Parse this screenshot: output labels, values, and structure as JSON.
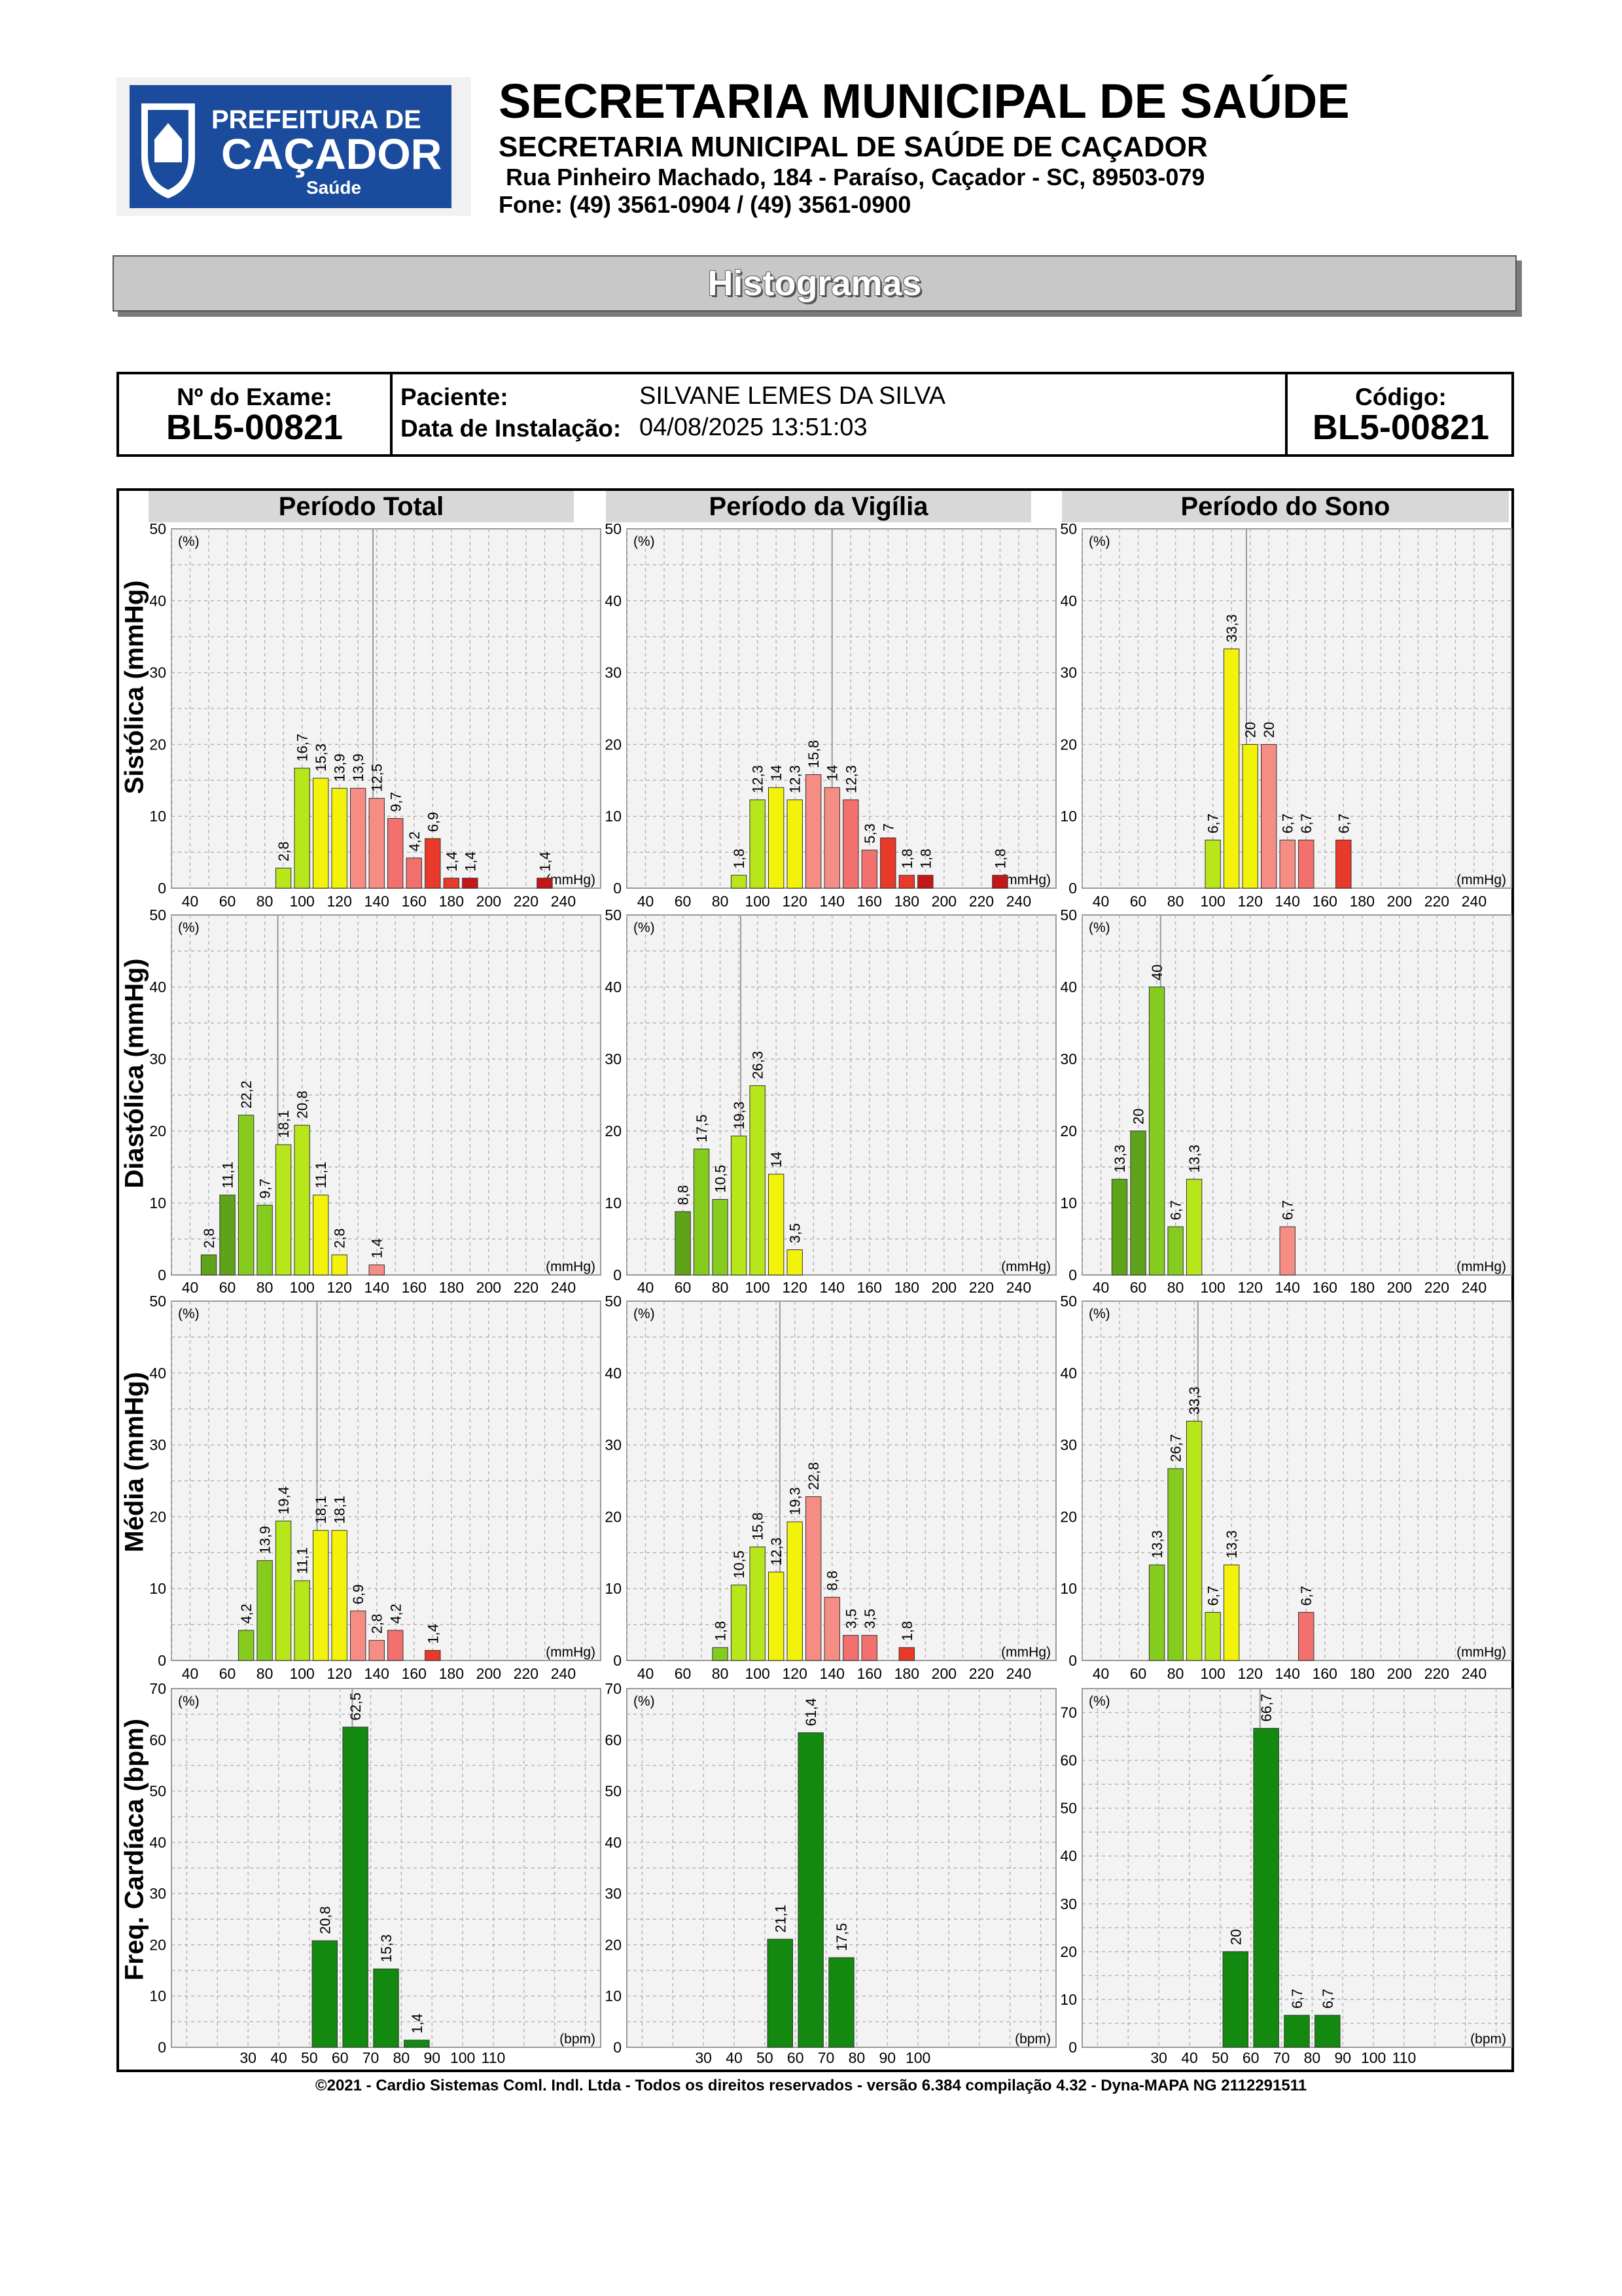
{
  "header": {
    "logo_text_line1": "PREFEITURA DE",
    "logo_text_line2": "CAÇADOR",
    "logo_text_line3": "Saúde",
    "title": "SECRETARIA MUNICIPAL DE SAÚDE",
    "subtitle": "SECRETARIA MUNICIPAL DE SAÚDE DE CAÇADOR",
    "address": "Rua Pinheiro Machado, 184 - Paraíso, Caçador - SC, 89503-079",
    "phone": "Fone: (49) 3561-0904  / (49) 3561-0900"
  },
  "banner": "Histogramas",
  "info": {
    "exam_label": "Nº do Exame:",
    "exam_value": "BL5-00821",
    "patient_label": "Paciente:",
    "patient_value": "SILVANE LEMES DA SILVA",
    "install_label": "Data de Instalação:",
    "install_value": "04/08/2025 13:51:03",
    "code_label": "Código:",
    "code_value": "BL5-00821"
  },
  "columns": [
    "Período Total",
    "Período da Vigília",
    "Período do Sono"
  ],
  "rows": [
    "Sistólica (mmHg)",
    "Diastólica (mmHg)",
    "Média (mmHg)",
    "Freq. Cardíaca (bpm)"
  ],
  "colors": {
    "bp_palette": [
      "#5fa31a",
      "#86cc1f",
      "#b7e61b",
      "#f2f20a",
      "#f58d85",
      "#f2706e",
      "#e8392b",
      "#c41818"
    ],
    "hr_bar": "#138a0f",
    "grid_bg": "#f3f3f3"
  },
  "chart_data": [
    {
      "id": "sys-total",
      "type": "bar",
      "unit": "(mmHg)",
      "ylabel": "(%)",
      "ylim": [
        0,
        50
      ],
      "yticks": [
        0,
        10,
        20,
        30,
        40,
        50
      ],
      "xticks": [
        40,
        60,
        80,
        100,
        120,
        140,
        160,
        180,
        200,
        220,
        240
      ],
      "marker": 138,
      "bars": [
        {
          "x": 90,
          "v": 2.8,
          "label": "2,8"
        },
        {
          "x": 100,
          "v": 16.7,
          "label": "16,7"
        },
        {
          "x": 110,
          "v": 15.3,
          "label": "15,3"
        },
        {
          "x": 120,
          "v": 13.9,
          "label": "13,9"
        },
        {
          "x": 130,
          "v": 13.9,
          "label": "13,9"
        },
        {
          "x": 140,
          "v": 12.5,
          "label": "12,5"
        },
        {
          "x": 150,
          "v": 9.7,
          "label": "9,7"
        },
        {
          "x": 160,
          "v": 4.2,
          "label": "4,2"
        },
        {
          "x": 170,
          "v": 6.9,
          "label": "6,9"
        },
        {
          "x": 180,
          "v": 1.4,
          "label": "1,4"
        },
        {
          "x": 190,
          "v": 1.4,
          "label": "1,4"
        },
        {
          "x": 230,
          "v": 1.4,
          "label": "1,4"
        }
      ]
    },
    {
      "id": "sys-vigilia",
      "type": "bar",
      "unit": "(mmHg)",
      "ylabel": "(%)",
      "ylim": [
        0,
        50
      ],
      "yticks": [
        0,
        10,
        20,
        30,
        40,
        50
      ],
      "xticks": [
        40,
        60,
        80,
        100,
        120,
        140,
        160,
        180,
        200,
        220,
        240
      ],
      "marker": 140,
      "bars": [
        {
          "x": 90,
          "v": 1.8,
          "label": "1,8"
        },
        {
          "x": 100,
          "v": 12.3,
          "label": "12,3"
        },
        {
          "x": 110,
          "v": 14,
          "label": "14"
        },
        {
          "x": 120,
          "v": 12.3,
          "label": "12,3"
        },
        {
          "x": 130,
          "v": 15.8,
          "label": "15,8"
        },
        {
          "x": 140,
          "v": 14,
          "label": "14"
        },
        {
          "x": 150,
          "v": 12.3,
          "label": "12,3"
        },
        {
          "x": 160,
          "v": 5.3,
          "label": "5,3"
        },
        {
          "x": 170,
          "v": 7,
          "label": "7"
        },
        {
          "x": 180,
          "v": 1.8,
          "label": "1,8"
        },
        {
          "x": 190,
          "v": 1.8,
          "label": "1,8"
        },
        {
          "x": 230,
          "v": 1.8,
          "label": "1,8"
        }
      ]
    },
    {
      "id": "sys-sono",
      "type": "bar",
      "unit": "(mmHg)",
      "ylabel": "(%)",
      "ylim": [
        0,
        50
      ],
      "yticks": [
        0,
        10,
        20,
        30,
        40,
        50
      ],
      "xticks": [
        40,
        60,
        80,
        100,
        120,
        140,
        160,
        180,
        200,
        220,
        240
      ],
      "marker": 118,
      "bars": [
        {
          "x": 100,
          "v": 6.7,
          "label": "6,7"
        },
        {
          "x": 110,
          "v": 33.3,
          "label": "33,3"
        },
        {
          "x": 120,
          "v": 20,
          "label": "20"
        },
        {
          "x": 130,
          "v": 20,
          "label": "20"
        },
        {
          "x": 140,
          "v": 6.7,
          "label": "6,7"
        },
        {
          "x": 150,
          "v": 6.7,
          "label": "6,7"
        },
        {
          "x": 170,
          "v": 6.7,
          "label": "6,7"
        }
      ]
    },
    {
      "id": "dia-total",
      "type": "bar",
      "unit": "(mmHg)",
      "ylabel": "(%)",
      "ylim": [
        0,
        50
      ],
      "yticks": [
        0,
        10,
        20,
        30,
        40,
        50
      ],
      "xticks": [
        40,
        60,
        80,
        100,
        120,
        140,
        160,
        180,
        200,
        220,
        240
      ],
      "marker": 87,
      "bars": [
        {
          "x": 50,
          "v": 2.8,
          "label": "2,8"
        },
        {
          "x": 60,
          "v": 11.1,
          "label": "11,1"
        },
        {
          "x": 70,
          "v": 22.2,
          "label": "22,2"
        },
        {
          "x": 80,
          "v": 9.7,
          "label": "9,7"
        },
        {
          "x": 90,
          "v": 18.1,
          "label": "18,1"
        },
        {
          "x": 100,
          "v": 20.8,
          "label": "20,8"
        },
        {
          "x": 110,
          "v": 11.1,
          "label": "11,1"
        },
        {
          "x": 120,
          "v": 2.8,
          "label": "2,8"
        },
        {
          "x": 140,
          "v": 1.4,
          "label": "1,4"
        }
      ]
    },
    {
      "id": "dia-vigilia",
      "type": "bar",
      "unit": "(mmHg)",
      "ylabel": "(%)",
      "ylim": [
        0,
        50
      ],
      "yticks": [
        0,
        10,
        20,
        30,
        40,
        50
      ],
      "xticks": [
        40,
        60,
        80,
        100,
        120,
        140,
        160,
        180,
        200,
        220,
        240
      ],
      "marker": 91,
      "bars": [
        {
          "x": 60,
          "v": 8.8,
          "label": "8,8"
        },
        {
          "x": 70,
          "v": 17.5,
          "label": "17,5"
        },
        {
          "x": 80,
          "v": 10.5,
          "label": "10,5"
        },
        {
          "x": 90,
          "v": 19.3,
          "label": "19,3"
        },
        {
          "x": 100,
          "v": 26.3,
          "label": "26,3"
        },
        {
          "x": 110,
          "v": 14,
          "label": "14"
        },
        {
          "x": 120,
          "v": 3.5,
          "label": "3,5"
        }
      ]
    },
    {
      "id": "dia-sono",
      "type": "bar",
      "unit": "(mmHg)",
      "ylabel": "(%)",
      "ylim": [
        0,
        50
      ],
      "yticks": [
        0,
        10,
        20,
        30,
        40,
        50
      ],
      "xticks": [
        40,
        60,
        80,
        100,
        120,
        140,
        160,
        180,
        200,
        220,
        240
      ],
      "marker": 72,
      "bars": [
        {
          "x": 50,
          "v": 13.3,
          "label": "13,3"
        },
        {
          "x": 60,
          "v": 20,
          "label": "20"
        },
        {
          "x": 70,
          "v": 40,
          "label": "40"
        },
        {
          "x": 80,
          "v": 6.7,
          "label": "6,7"
        },
        {
          "x": 90,
          "v": 13.3,
          "label": "13,3"
        },
        {
          "x": 140,
          "v": 6.7,
          "label": "6,7"
        }
      ]
    },
    {
      "id": "med-total",
      "type": "bar",
      "unit": "(mmHg)",
      "ylabel": "(%)",
      "ylim": [
        0,
        50
      ],
      "yticks": [
        0,
        10,
        20,
        30,
        40,
        50
      ],
      "xticks": [
        40,
        60,
        80,
        100,
        120,
        140,
        160,
        180,
        200,
        220,
        240
      ],
      "marker": 108,
      "bars": [
        {
          "x": 70,
          "v": 4.2,
          "label": "4,2"
        },
        {
          "x": 80,
          "v": 13.9,
          "label": "13,9"
        },
        {
          "x": 90,
          "v": 19.4,
          "label": "19,4"
        },
        {
          "x": 100,
          "v": 11.1,
          "label": "11,1"
        },
        {
          "x": 110,
          "v": 18.1,
          "label": "18,1"
        },
        {
          "x": 120,
          "v": 18.1,
          "label": "18,1"
        },
        {
          "x": 130,
          "v": 6.9,
          "label": "6,9"
        },
        {
          "x": 140,
          "v": 2.8,
          "label": "2,8"
        },
        {
          "x": 150,
          "v": 4.2,
          "label": "4,2"
        },
        {
          "x": 170,
          "v": 1.4,
          "label": "1,4"
        }
      ]
    },
    {
      "id": "med-vigilia",
      "type": "bar",
      "unit": "(mmHg)",
      "ylabel": "(%)",
      "ylim": [
        0,
        50
      ],
      "yticks": [
        0,
        10,
        20,
        30,
        40,
        50
      ],
      "xticks": [
        40,
        60,
        80,
        100,
        120,
        140,
        160,
        180,
        200,
        220,
        240
      ],
      "marker": 112,
      "bars": [
        {
          "x": 80,
          "v": 1.8,
          "label": "1,8"
        },
        {
          "x": 90,
          "v": 10.5,
          "label": "10,5"
        },
        {
          "x": 100,
          "v": 15.8,
          "label": "15,8"
        },
        {
          "x": 110,
          "v": 12.3,
          "label": "12,3"
        },
        {
          "x": 120,
          "v": 19.3,
          "label": "19,3"
        },
        {
          "x": 130,
          "v": 22.8,
          "label": "22,8"
        },
        {
          "x": 140,
          "v": 8.8,
          "label": "8,8"
        },
        {
          "x": 150,
          "v": 3.5,
          "label": "3,5"
        },
        {
          "x": 160,
          "v": 3.5,
          "label": "3,5"
        },
        {
          "x": 180,
          "v": 1.8,
          "label": "1,8"
        }
      ]
    },
    {
      "id": "med-sono",
      "type": "bar",
      "unit": "(mmHg)",
      "ylabel": "(%)",
      "ylim": [
        0,
        50
      ],
      "yticks": [
        0,
        10,
        20,
        30,
        40,
        50
      ],
      "xticks": [
        40,
        60,
        80,
        100,
        120,
        140,
        160,
        180,
        200,
        220,
        240
      ],
      "marker": 92,
      "bars": [
        {
          "x": 70,
          "v": 13.3,
          "label": "13,3"
        },
        {
          "x": 80,
          "v": 26.7,
          "label": "26,7"
        },
        {
          "x": 90,
          "v": 33.3,
          "label": "33,3"
        },
        {
          "x": 100,
          "v": 6.7,
          "label": "6,7"
        },
        {
          "x": 110,
          "v": 13.3,
          "label": "13,3"
        },
        {
          "x": 150,
          "v": 6.7,
          "label": "6,7"
        }
      ]
    },
    {
      "id": "hr-total",
      "type": "bar",
      "unit": "(bpm)",
      "ylabel": "(%)",
      "ylim": [
        0,
        70
      ],
      "yticks": [
        0,
        10,
        20,
        30,
        40,
        50,
        60,
        70
      ],
      "xticks": [
        30,
        40,
        50,
        60,
        70,
        80,
        90,
        100,
        110
      ],
      "marker": 64,
      "bars": [
        {
          "x": 55,
          "v": 20.8,
          "label": "20,8"
        },
        {
          "x": 65,
          "v": 62.5,
          "label": "62,5"
        },
        {
          "x": 75,
          "v": 15.3,
          "label": "15,3"
        },
        {
          "x": 85,
          "v": 1.4,
          "label": "1,4"
        }
      ]
    },
    {
      "id": "hr-vigilia",
      "type": "bar",
      "unit": "(bpm)",
      "ylabel": "(%)",
      "ylim": [
        0,
        70
      ],
      "yticks": [
        0,
        10,
        20,
        30,
        40,
        50,
        60,
        70
      ],
      "xticks": [
        30,
        40,
        50,
        60,
        70,
        80,
        90,
        100
      ],
      "marker": null,
      "bars": [
        {
          "x": 55,
          "v": 21.1,
          "label": "21,1"
        },
        {
          "x": 65,
          "v": 61.4,
          "label": "61,4"
        },
        {
          "x": 75,
          "v": 17.5,
          "label": "17,5"
        }
      ]
    },
    {
      "id": "hr-sono",
      "type": "bar",
      "unit": "(bpm)",
      "ylabel": "(%)",
      "ylim": [
        0,
        75
      ],
      "yticks": [
        0,
        10,
        20,
        30,
        40,
        50,
        60,
        70
      ],
      "xticks": [
        30,
        40,
        50,
        60,
        70,
        80,
        90,
        100,
        110
      ],
      "marker": 63,
      "bars": [
        {
          "x": 55,
          "v": 20,
          "label": "20"
        },
        {
          "x": 65,
          "v": 66.7,
          "label": "66,7"
        },
        {
          "x": 75,
          "v": 6.7,
          "label": "6,7"
        },
        {
          "x": 85,
          "v": 6.7,
          "label": "6,7"
        }
      ]
    }
  ],
  "footer": "©2021 - Cardio Sistemas Coml. Indl. Ltda - Todos os direitos reservados - versão 6.384 compilação 4.32 - Dyna-MAPA NG 2112291511"
}
